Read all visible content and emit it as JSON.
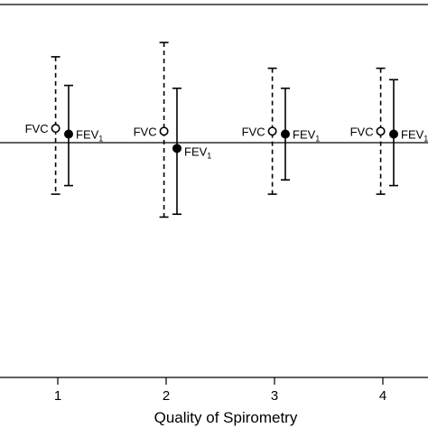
{
  "chart_data": {
    "type": "scatter",
    "subtype": "error-bar",
    "title": "",
    "xlabel": "Quality of Spirometry",
    "ylabel": "",
    "categories": [
      "1",
      "2",
      "3",
      "4"
    ],
    "xlim": [
      0.5,
      4.5
    ],
    "ylim": [
      -8,
      5
    ],
    "reference_line": 0,
    "grid": false,
    "legend": "none",
    "series": [
      {
        "name": "FVC",
        "label_main": "FVC",
        "label_sub": "",
        "marker": "open-circle",
        "line_style": "dashed",
        "color": "#000000",
        "offset": -0.02,
        "points": [
          {
            "x": 1,
            "y": 0.5,
            "low": -1.8,
            "high": 3.0
          },
          {
            "x": 2,
            "y": 0.4,
            "low": -2.6,
            "high": 3.5
          },
          {
            "x": 3,
            "y": 0.4,
            "low": -1.8,
            "high": 2.6
          },
          {
            "x": 4,
            "y": 0.4,
            "low": -1.8,
            "high": 2.6
          }
        ]
      },
      {
        "name": "FEV1",
        "label_main": "FEV",
        "label_sub": "1",
        "marker": "filled-circle",
        "line_style": "solid",
        "color": "#000000",
        "offset": 0.1,
        "points": [
          {
            "x": 1,
            "y": 0.3,
            "low": -1.5,
            "high": 2.0
          },
          {
            "x": 2,
            "y": -0.2,
            "low": -2.5,
            "high": 1.9
          },
          {
            "x": 3,
            "y": 0.3,
            "low": -1.3,
            "high": 1.9
          },
          {
            "x": 4,
            "y": 0.3,
            "low": -1.5,
            "high": 2.2
          }
        ]
      }
    ]
  }
}
